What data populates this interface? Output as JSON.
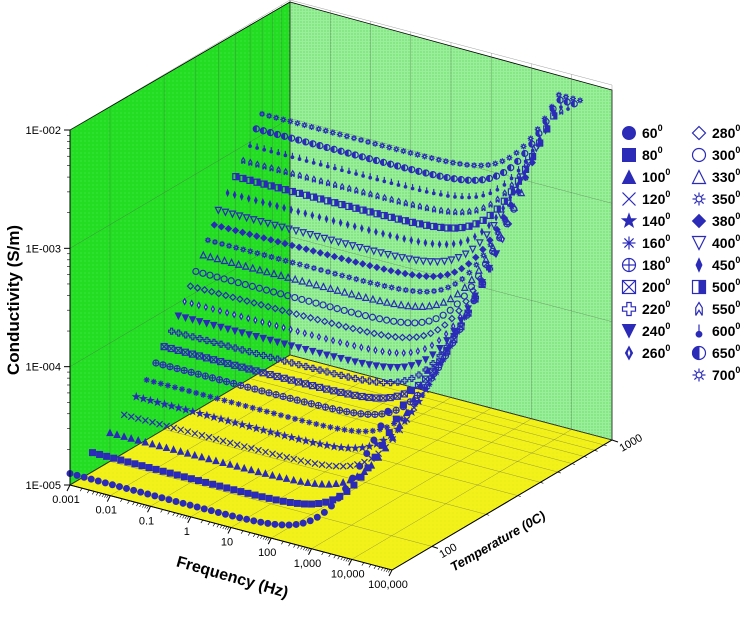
{
  "chart_data": {
    "type": "scatter",
    "subtype": "3d-scatter",
    "title": "",
    "xlabel": "Frequency (Hz)",
    "ylabel": "Temperature (0C)",
    "zlabel": "Conductivity (S/m)",
    "x_scale": "log",
    "y_scale": "log",
    "z_scale": "log",
    "x_range": [
      0.001,
      100000
    ],
    "y_range": [
      60,
      1000
    ],
    "z_range": [
      1e-05,
      0.01
    ],
    "x_ticks": [
      "0.001",
      "0.01",
      "0.1",
      "1",
      "10",
      "100",
      "1,000",
      "10,000",
      "100,000"
    ],
    "y_ticks": [
      "100",
      "1000"
    ],
    "z_ticks": [
      "1E-005",
      "1E-004",
      "1E-003",
      "1E-002"
    ],
    "marker_color": "#2b2bb8",
    "back_wall_color": "#22dd22",
    "right_wall_color": "#88ee88",
    "floor_color": "#f2f21a",
    "grid": true,
    "legend_position": "right",
    "legend_degree_sup": "0",
    "series": [
      {
        "name": "60",
        "marker": "circle-filled",
        "temperature": 60,
        "dc": 1.25e-05,
        "corner": 3000
      },
      {
        "name": "80",
        "marker": "square-filled",
        "temperature": 80,
        "dc": 1.45e-05,
        "corner": 3000
      },
      {
        "name": "100",
        "marker": "triangle-filled",
        "temperature": 100,
        "dc": 1.75e-05,
        "corner": 3000
      },
      {
        "name": "120",
        "marker": "x",
        "temperature": 120,
        "dc": 2.1e-05,
        "corner": 3000
      },
      {
        "name": "140",
        "marker": "star-filled",
        "temperature": 140,
        "dc": 2.6e-05,
        "corner": 3000
      },
      {
        "name": "160",
        "marker": "asterisk",
        "temperature": 160,
        "dc": 3.2e-05,
        "corner": 3000
      },
      {
        "name": "180",
        "marker": "circle-plus",
        "temperature": 180,
        "dc": 4e-05,
        "corner": 3000
      },
      {
        "name": "200",
        "marker": "square-x",
        "temperature": 200,
        "dc": 5e-05,
        "corner": 3000
      },
      {
        "name": "220",
        "marker": "cross-open",
        "temperature": 220,
        "dc": 6.2e-05,
        "corner": 3000
      },
      {
        "name": "240",
        "marker": "triangle-down-filled",
        "temperature": 240,
        "dc": 7.7e-05,
        "corner": 3000
      },
      {
        "name": "260",
        "marker": "diamond-thin-filled",
        "temperature": 260,
        "dc": 9.5e-05,
        "corner": 3000
      },
      {
        "name": "280",
        "marker": "diamond-open",
        "temperature": 280,
        "dc": 0.00012,
        "corner": 3000
      },
      {
        "name": "300",
        "marker": "circle-open",
        "temperature": 300,
        "dc": 0.00015,
        "corner": 3000
      },
      {
        "name": "330",
        "marker": "triangle-open",
        "temperature": 330,
        "dc": 0.00019,
        "corner": 3000
      },
      {
        "name": "350",
        "marker": "sun-open",
        "temperature": 350,
        "dc": 0.00024,
        "corner": 3000
      },
      {
        "name": "380",
        "marker": "diamond-filled",
        "temperature": 380,
        "dc": 0.0003,
        "corner": 3000
      },
      {
        "name": "400",
        "marker": "triangle-down-open",
        "temperature": 400,
        "dc": 0.00038,
        "corner": 3000
      },
      {
        "name": "450",
        "marker": "diamond-small-filled",
        "temperature": 450,
        "dc": 0.00048,
        "corner": 3000
      },
      {
        "name": "500",
        "marker": "square-half",
        "temperature": 500,
        "dc": 0.0006,
        "corner": 3000
      },
      {
        "name": "550",
        "marker": "rocket-open",
        "temperature": 550,
        "dc": 0.00075,
        "corner": 3000
      },
      {
        "name": "600",
        "marker": "pin-filled",
        "temperature": 600,
        "dc": 0.00095,
        "corner": 3000
      },
      {
        "name": "650",
        "marker": "circle-half",
        "temperature": 650,
        "dc": 0.0012,
        "corner": 3000
      },
      {
        "name": "700",
        "marker": "sun-open-2",
        "temperature": 700,
        "dc": 0.0015,
        "corner": 3000
      }
    ]
  }
}
